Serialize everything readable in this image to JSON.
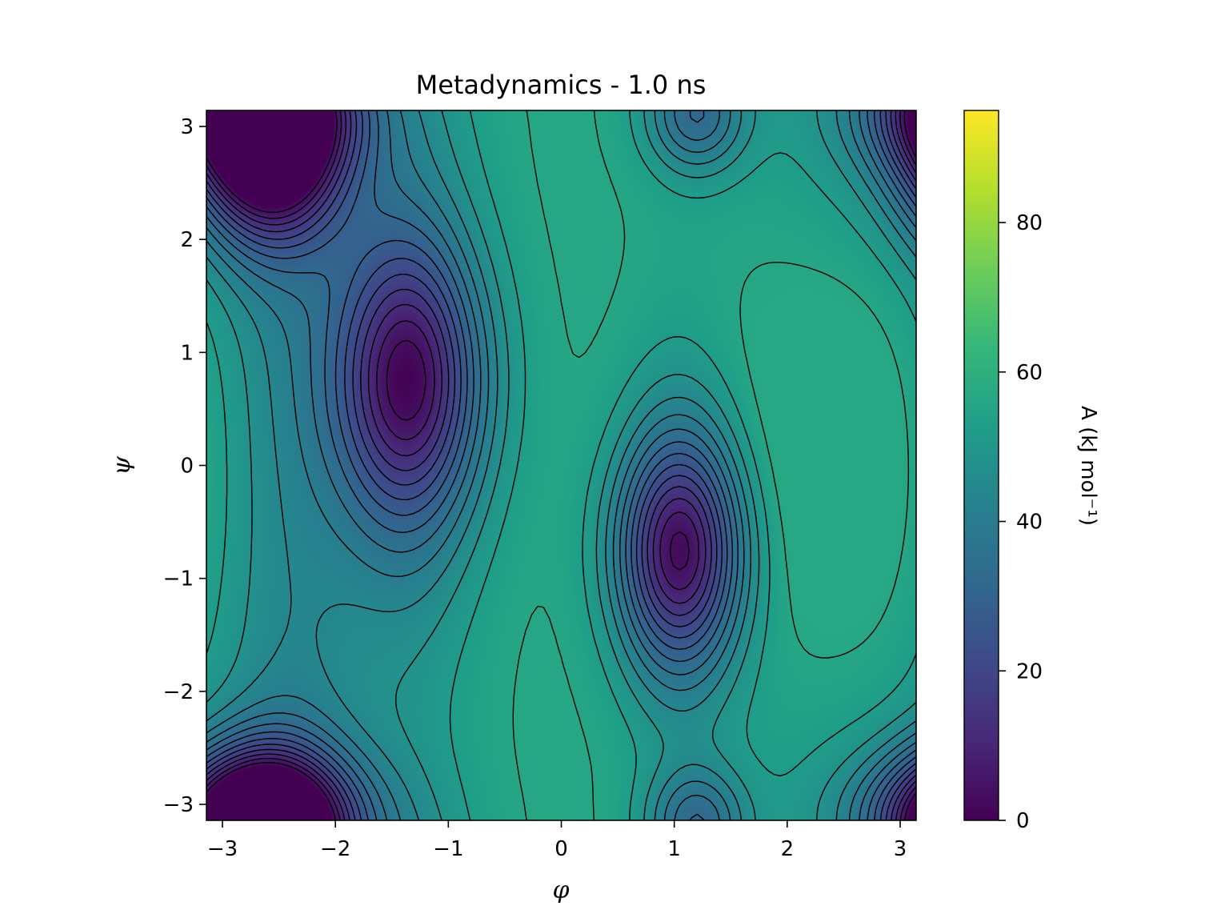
{
  "chart_data": {
    "type": "heatmap",
    "title": "Metadynamics - 1.0 ns",
    "xlabel": "φ",
    "ylabel": "ψ",
    "xlim": [
      -3.1416,
      3.1416
    ],
    "ylim": [
      -3.1416,
      3.1416
    ],
    "xticks": [
      -3,
      -2,
      -1,
      0,
      1,
      2,
      3
    ],
    "yticks": [
      -3,
      -2,
      -1,
      0,
      1,
      2,
      3
    ],
    "xtick_labels": [
      "−3",
      "−2",
      "−1",
      "0",
      "1",
      "2",
      "3"
    ],
    "ytick_labels": [
      "−3",
      "−2",
      "−1",
      "0",
      "1",
      "2",
      "3"
    ],
    "colormap": "viridis",
    "colorbar": {
      "label": "A (kJ mol⁻¹)",
      "range": [
        0,
        95
      ],
      "ticks": [
        0,
        20,
        40,
        60,
        80
      ],
      "tick_labels": [
        "0",
        "20",
        "40",
        "60",
        "80"
      ]
    },
    "contour_levels": [
      4,
      8,
      12,
      16,
      20,
      24,
      28,
      32,
      36,
      40,
      44,
      48,
      52,
      56
    ],
    "surface": {
      "base_level": 57,
      "minima": [
        {
          "phi": -2.6,
          "psi": 2.75,
          "depth": 56
        },
        {
          "phi": -1.35,
          "psi": 0.75,
          "depth": 55
        },
        {
          "phi": 1.05,
          "psi": -0.75,
          "depth": 55
        },
        {
          "phi": -2.7,
          "psi": -3.1,
          "depth": 50
        },
        {
          "phi": 1.2,
          "psi": 3.1,
          "depth": 22
        }
      ],
      "global_range": [
        0,
        57
      ]
    },
    "grid": false,
    "legend": "none"
  }
}
